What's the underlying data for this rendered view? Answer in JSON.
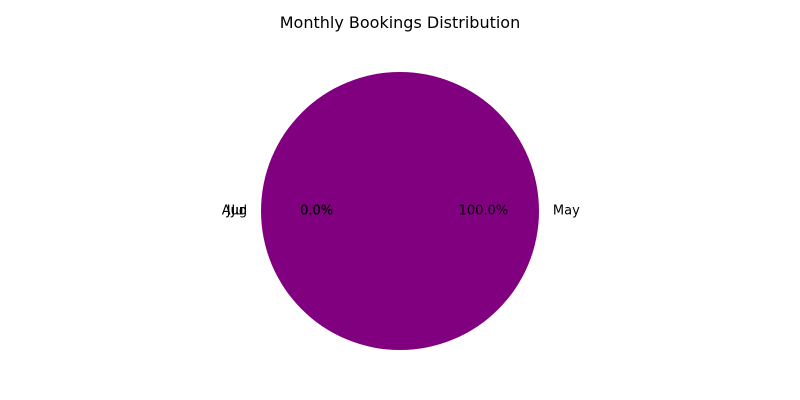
{
  "chart_data": {
    "type": "pie",
    "title": "Monthly Bookings Distribution",
    "categories": [
      "May",
      "Jun",
      "Jul",
      "Aug"
    ],
    "values": [
      100,
      0,
      0,
      0
    ],
    "percent_labels": [
      "100.0%",
      "0.0%",
      "0.0%",
      "0.0%"
    ],
    "colors": [
      "#800080",
      "#800080",
      "#800080",
      "#800080"
    ],
    "start_angle_deg": 180,
    "legend": "none"
  }
}
